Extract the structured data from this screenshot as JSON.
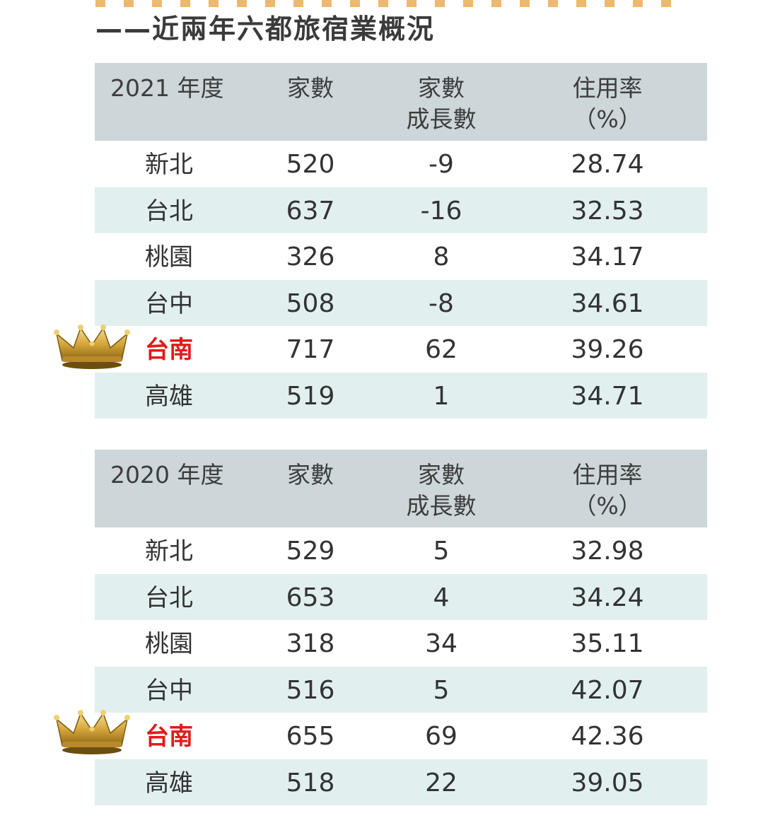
{
  "title": "——近兩年六都旅宿業概況",
  "tables": [
    {
      "headers": [
        "2021 年度",
        "家數",
        "家數\n成長數",
        "住用率\n（%）"
      ],
      "rows": [
        [
          "新北",
          "520",
          "-9",
          "28.74"
        ],
        [
          "台北",
          "637",
          "-16",
          "32.53"
        ],
        [
          "桃園",
          "326",
          "8",
          "34.17"
        ],
        [
          "台中",
          "508",
          "-8",
          "34.61"
        ],
        [
          "台南",
          "717",
          "62",
          "39.26"
        ],
        [
          "高雄",
          "519",
          "1",
          "34.71"
        ]
      ]
    },
    {
      "headers": [
        "2020 年度",
        "家數",
        "家數\n成長數",
        "住用率\n（%）"
      ],
      "rows": [
        [
          "新北",
          "529",
          "5",
          "32.98"
        ],
        [
          "台北",
          "653",
          "4",
          "34.24"
        ],
        [
          "桃園",
          "318",
          "34",
          "35.11"
        ],
        [
          "台中",
          "516",
          "5",
          "42.07"
        ],
        [
          "台南",
          "655",
          "69",
          "42.36"
        ],
        [
          "高雄",
          "518",
          "22",
          "39.05"
        ]
      ]
    }
  ],
  "highlight_city": "台南",
  "colors": {
    "header_bg": "#cdd6d8",
    "alt_row_bg": "#e2efef",
    "highlight_text": "#e01b1b",
    "crown": "#d4a53a"
  },
  "icons": {
    "crown": "crown-icon"
  }
}
